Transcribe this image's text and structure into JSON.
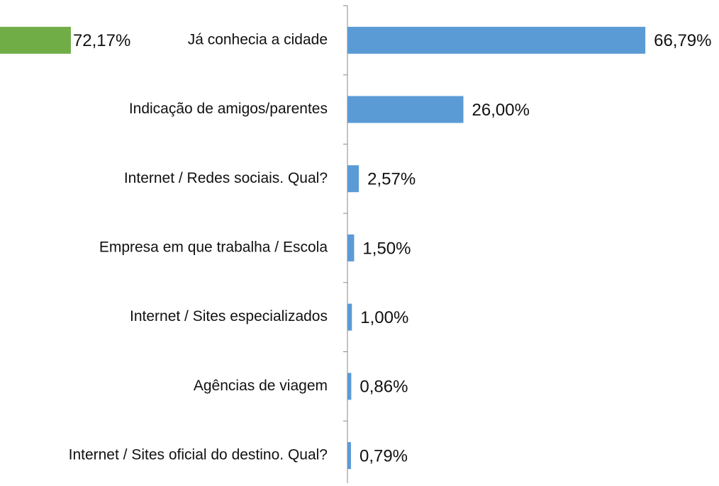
{
  "chart_data": [
    {
      "type": "bar",
      "orientation": "horizontal",
      "categories": [
        null
      ],
      "values": [
        72.17
      ],
      "value_labels": [
        "72,17%"
      ],
      "color": "#70ad47",
      "xlim": [
        0,
        70
      ]
    },
    {
      "type": "bar",
      "orientation": "horizontal",
      "categories": [
        "Já conhecia a cidade",
        "Indicação de amigos/parentes",
        "Internet / Redes sociais. Qual?",
        "Empresa em que trabalha / Escola",
        "Internet / Sites especializados",
        "Agências de viagem",
        "Internet / Sites oficial do destino. Qual?"
      ],
      "values": [
        66.79,
        26.0,
        2.57,
        1.5,
        1.0,
        0.86,
        0.79
      ],
      "value_labels": [
        "66,79%",
        "26,00%",
        "2,57%",
        "1,50%",
        "1,00%",
        "0,86%",
        "0,79%"
      ],
      "color": "#5b9bd5",
      "xlim": [
        0,
        70
      ]
    }
  ]
}
